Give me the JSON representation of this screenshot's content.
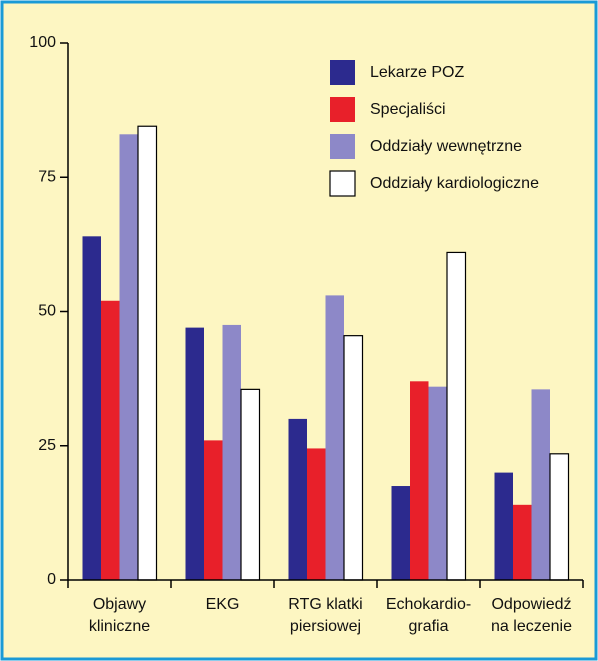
{
  "chart_data": {
    "type": "bar",
    "categories": [
      "Objawy\nkliniczne",
      "EKG",
      "RTG klatki\npiersiowej",
      "Echokardio-\ngrafia",
      "Odpowiedź\nna leczenie"
    ],
    "series": [
      {
        "name": "Lekarze POZ",
        "color": "#2c2a8e",
        "values": [
          64,
          47,
          30,
          17.5,
          20
        ]
      },
      {
        "name": "Specjaliści",
        "color": "#e8202a",
        "values": [
          52,
          26,
          24.5,
          37,
          14
        ]
      },
      {
        "name": "Oddziały wewnętrzne",
        "color": "#8d88c8",
        "values": [
          83,
          47.5,
          53,
          36,
          35.5
        ]
      },
      {
        "name": "Oddziały kardiologiczne",
        "color": "#ffffff",
        "values": [
          84.5,
          35.5,
          45.5,
          61,
          23.5
        ]
      }
    ],
    "ylim": [
      0,
      100
    ],
    "yticks": [
      0,
      25,
      50,
      75,
      100
    ],
    "grid": false,
    "legend": "upper right"
  }
}
